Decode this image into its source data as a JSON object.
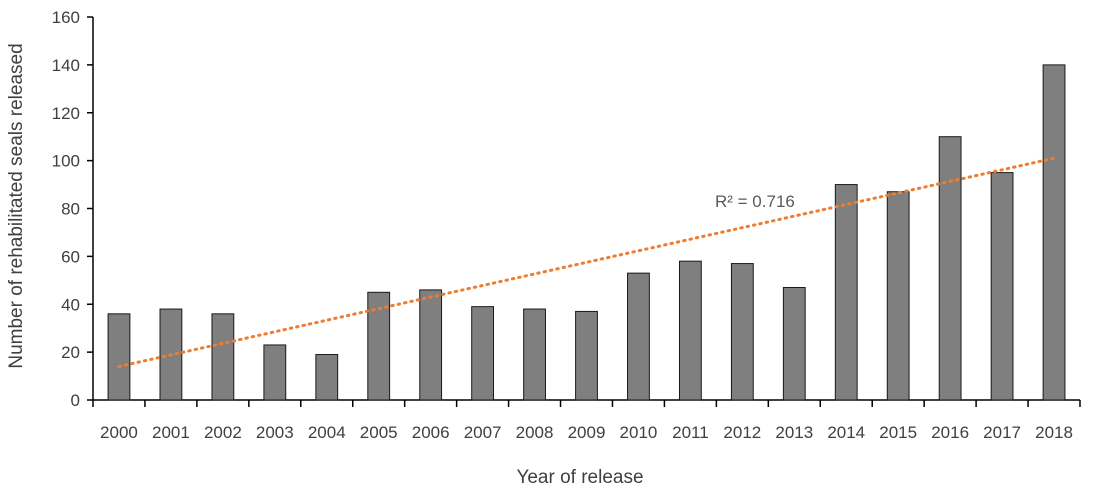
{
  "chart_data": {
    "type": "bar",
    "categories": [
      "2000",
      "2001",
      "2002",
      "2003",
      "2004",
      "2005",
      "2006",
      "2007",
      "2008",
      "2009",
      "2010",
      "2011",
      "2012",
      "2013",
      "2014",
      "2015",
      "2016",
      "2017",
      "2018"
    ],
    "values": [
      36,
      38,
      36,
      23,
      19,
      45,
      46,
      39,
      38,
      37,
      53,
      58,
      57,
      47,
      90,
      87,
      110,
      95,
      140
    ],
    "xlabel": "Year of release",
    "ylabel": "Number of rehabilitated seals released",
    "ylim": [
      0,
      160
    ],
    "yticks": [
      0,
      20,
      40,
      60,
      80,
      100,
      120,
      140,
      160
    ],
    "trendline": {
      "type": "linear",
      "start_value": 14,
      "end_value": 101,
      "label": "R² = 0.716",
      "color": "#ED7D31",
      "style": "dotted"
    },
    "bar_color": "#7F7F7F",
    "bar_edge_color": "#1a1a1a",
    "grid": false,
    "legend": "none"
  }
}
